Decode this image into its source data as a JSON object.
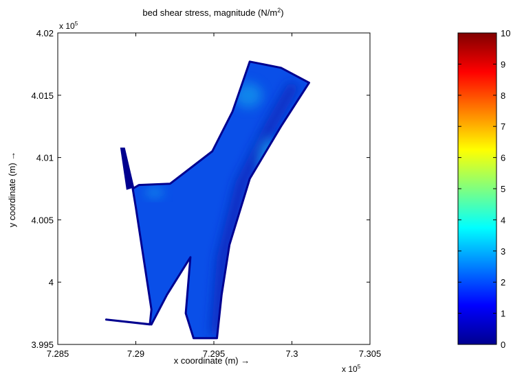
{
  "chart_data": {
    "type": "heatmap",
    "title_main": "bed shear stress, magnitude (N/m",
    "title_sup": "2",
    "title_tail": ")",
    "xlabel": "x coordinate (m) →",
    "ylabel": "y coordinate (m) →",
    "x_exponent_base": "x 10",
    "x_exponent_power": "5",
    "y_exponent_base": "x 10",
    "y_exponent_power": "5",
    "xlim": [
      7.285,
      7.305
    ],
    "ylim": [
      3.995,
      4.02
    ],
    "xticks": [
      7.285,
      7.29,
      7.295,
      7.3,
      7.305
    ],
    "xtick_labels": [
      "7.285",
      "7.29",
      "7.295",
      "7.3",
      "7.305"
    ],
    "yticks": [
      3.995,
      4,
      4.005,
      4.01,
      4.015,
      4.02
    ],
    "ytick_labels": [
      "3.995",
      "4",
      "4.005",
      "4.01",
      "4.015",
      "4.02"
    ],
    "grid": false,
    "colormap": "jet",
    "colorbar": {
      "range": [
        0,
        10
      ],
      "ticks": [
        0,
        1,
        2,
        3,
        4,
        5,
        6,
        7,
        8,
        9,
        10
      ],
      "tick_labels": [
        "0",
        "1",
        "2",
        "3",
        "4",
        "5",
        "6",
        "7",
        "8",
        "9",
        "10"
      ]
    },
    "domain_color": "#0a4fe8",
    "channel_color": "#0a2bbd",
    "outline_color": "#00008f",
    "highlight_color": "#19b4ef",
    "domain_outline": [
      [
        7.2881,
        3.997
      ],
      [
        7.2909,
        3.9966
      ],
      [
        7.291,
        3.9978
      ],
      [
        7.29,
        4.006
      ],
      [
        7.2898,
        4.0075
      ],
      [
        7.2902,
        4.0078
      ],
      [
        7.2922,
        4.0079
      ],
      [
        7.2949,
        4.0105
      ],
      [
        7.2962,
        4.0137
      ],
      [
        7.2973,
        4.0177
      ],
      [
        7.2993,
        4.0172
      ],
      [
        7.3011,
        4.016
      ],
      [
        7.2993,
        4.0125
      ],
      [
        7.2973,
        4.0083
      ],
      [
        7.296,
        4.003
      ],
      [
        7.2955,
        3.999
      ],
      [
        7.2952,
        3.9955
      ],
      [
        7.2937,
        3.9955
      ],
      [
        7.2932,
        3.9975
      ],
      [
        7.2935,
        4.002
      ],
      [
        7.292,
        3.999
      ],
      [
        7.291,
        3.9966
      ],
      [
        7.2881,
        3.997
      ]
    ],
    "channel_spur": [
      [
        7.289,
        4.0108
      ],
      [
        7.2893,
        4.0108
      ],
      [
        7.2899,
        4.0076
      ],
      [
        7.2894,
        4.0074
      ],
      [
        7.289,
        4.0108
      ]
    ],
    "deep_channel": [
      [
        7.2948,
        3.9958
      ],
      [
        7.2955,
        3.9958
      ],
      [
        7.296,
        4.002
      ],
      [
        7.2972,
        4.008
      ],
      [
        7.299,
        4.0125
      ],
      [
        7.3005,
        4.0158
      ],
      [
        7.2998,
        4.016
      ],
      [
        7.2983,
        4.0127
      ],
      [
        7.2964,
        4.008
      ],
      [
        7.2952,
        4.002
      ],
      [
        7.2948,
        3.9958
      ]
    ],
    "highlight_zones": [
      {
        "cx": 7.2972,
        "cy": 4.015,
        "rx": 0.0009,
        "ry": 0.001
      },
      {
        "cx": 7.2912,
        "cy": 4.0072,
        "rx": 0.0006,
        "ry": 0.0004
      },
      {
        "cx": 7.2985,
        "cy": 4.01,
        "rx": 0.0007,
        "ry": 0.0016
      }
    ]
  }
}
